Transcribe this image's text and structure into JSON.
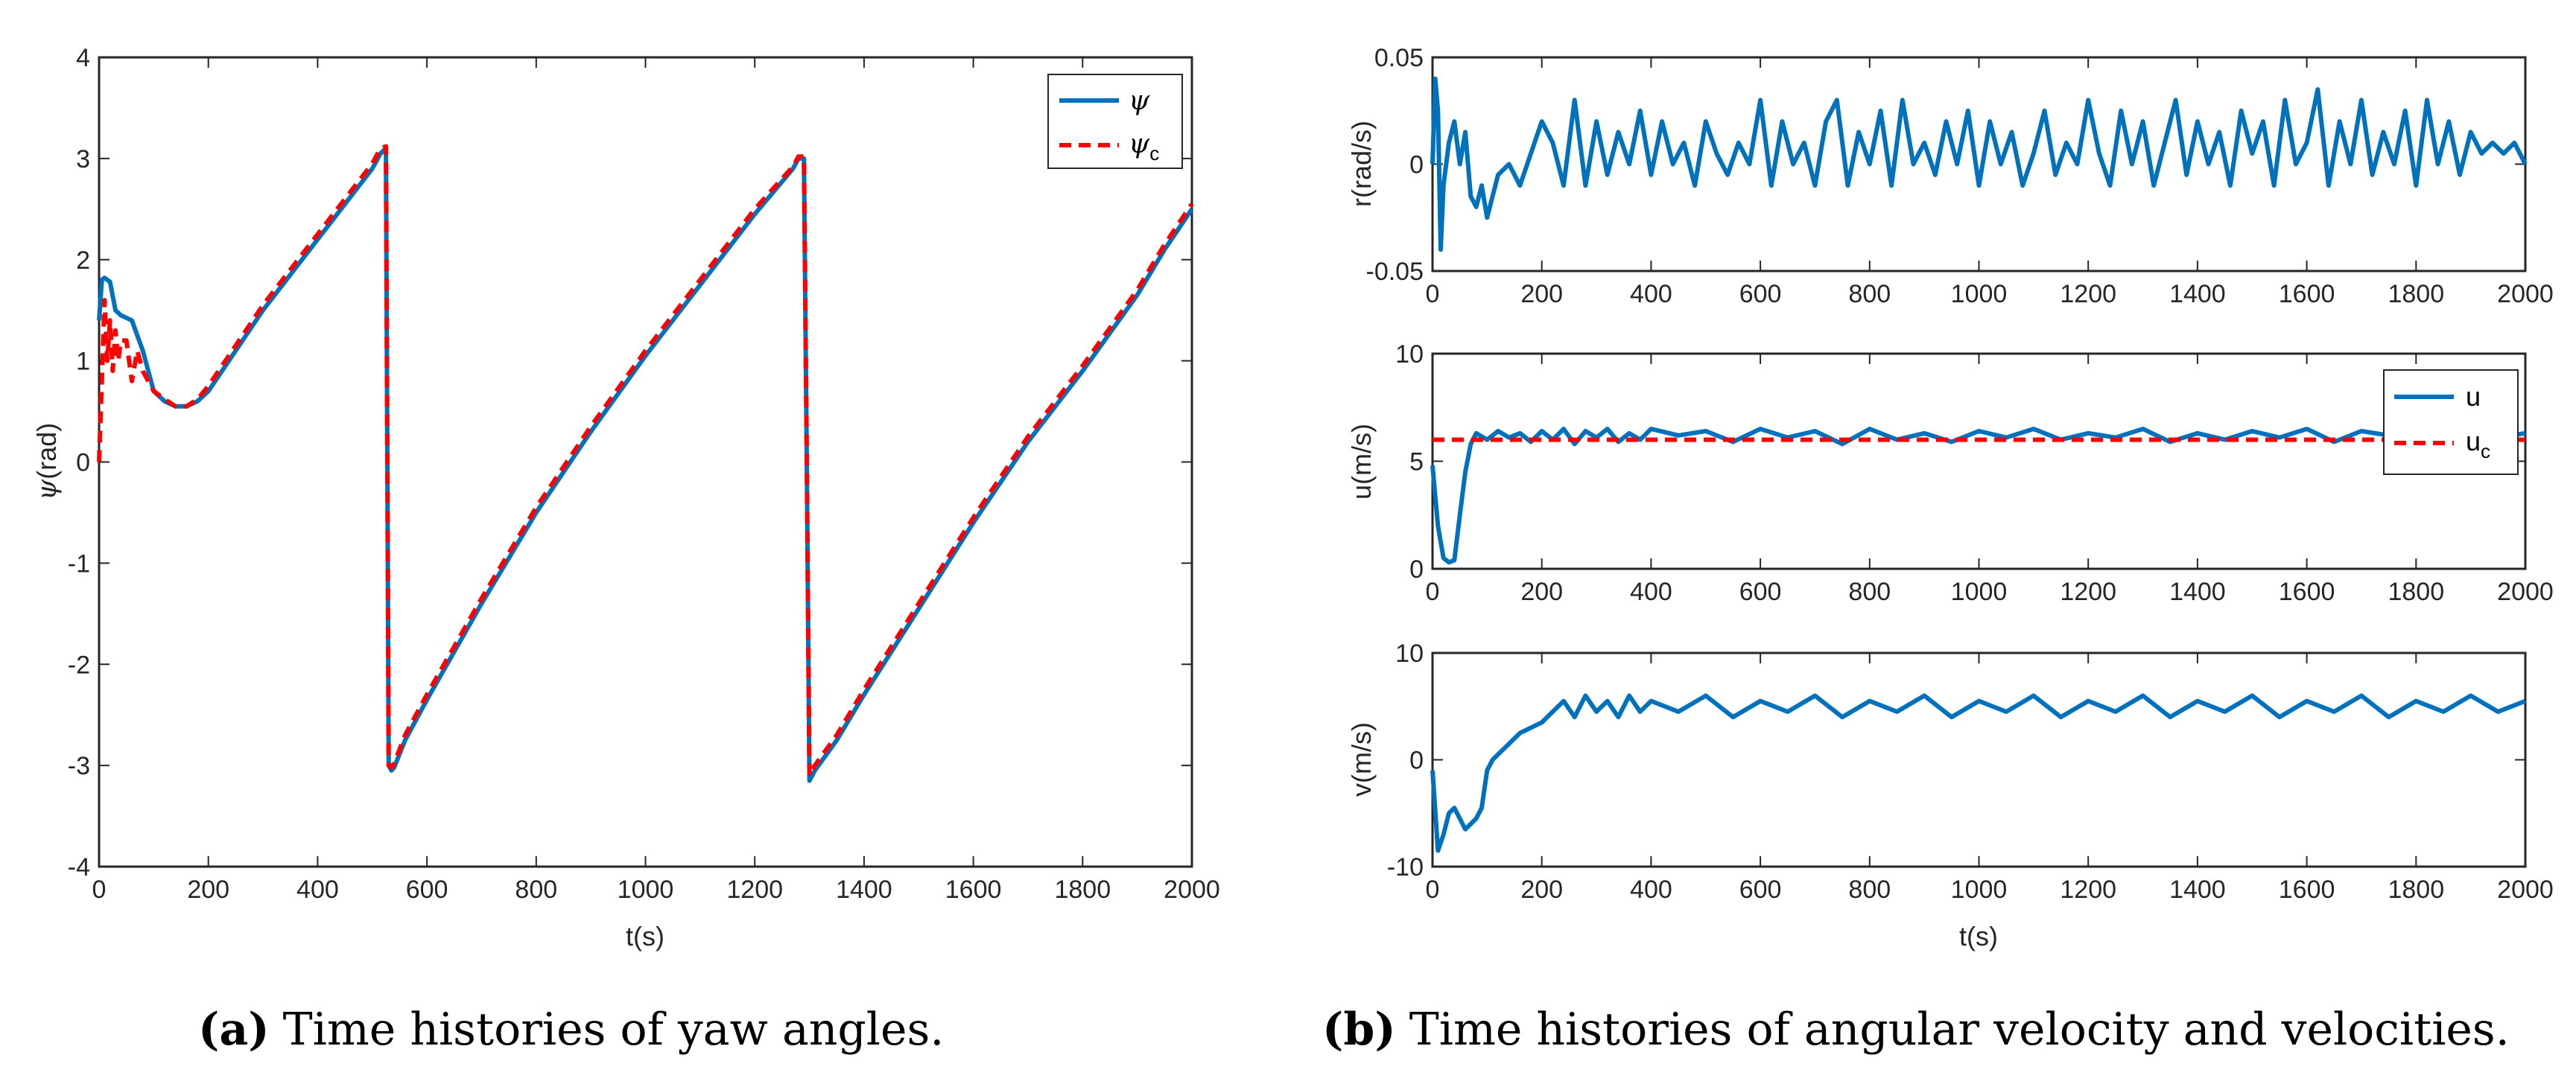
{
  "colors": {
    "actual": "#0072BD",
    "command": "#FF0000",
    "axis": "#262626"
  },
  "captions": {
    "a": {
      "letter": "(a)",
      "text": "Time histories of yaw angles."
    },
    "b": {
      "letter": "(b)",
      "text": "Time histories of angular velocity and velocities."
    }
  },
  "chart_data": [
    {
      "id": "yaw",
      "type": "line",
      "xlabel": "t(s)",
      "ylabel_symbol": "ψ",
      "ylabel_unit": "(rad)",
      "xlim": [
        0,
        2000
      ],
      "ylim": [
        -4,
        4
      ],
      "xticks": [
        0,
        200,
        400,
        600,
        800,
        1000,
        1200,
        1400,
        1600,
        1800,
        2000
      ],
      "yticks": [
        -4,
        -3,
        -2,
        -1,
        0,
        1,
        2,
        3,
        4
      ],
      "legend": {
        "position": "top-right",
        "entries": [
          {
            "symbol": "ψ",
            "sub": ""
          },
          {
            "symbol": "ψ",
            "sub": "c"
          }
        ]
      },
      "series": [
        {
          "name": "ψ",
          "style": "solid",
          "x": [
            0,
            5,
            10,
            20,
            30,
            40,
            60,
            80,
            100,
            120,
            140,
            160,
            180,
            200,
            250,
            300,
            350,
            400,
            450,
            500,
            515,
            525,
            530,
            535,
            540,
            560,
            600,
            700,
            800,
            900,
            1000,
            1100,
            1200,
            1270,
            1280,
            1290,
            1295,
            1300,
            1310,
            1350,
            1400,
            1500,
            1600,
            1700,
            1800,
            1900,
            1950,
            2000
          ],
          "y": [
            1.4,
            1.8,
            1.82,
            1.78,
            1.5,
            1.45,
            1.4,
            1.1,
            0.7,
            0.6,
            0.55,
            0.55,
            0.6,
            0.7,
            1.1,
            1.5,
            1.85,
            2.2,
            2.55,
            2.9,
            3.05,
            3.1,
            -3.0,
            -3.05,
            -3.02,
            -2.75,
            -2.35,
            -1.4,
            -0.5,
            0.3,
            1.05,
            1.75,
            2.45,
            2.9,
            3.0,
            3.0,
            0.1,
            -3.15,
            -3.05,
            -2.75,
            -2.3,
            -1.45,
            -0.6,
            0.2,
            0.9,
            1.65,
            2.1,
            2.5
          ]
        },
        {
          "name": "ψc",
          "style": "dashed",
          "x": [
            0,
            5,
            10,
            15,
            20,
            25,
            30,
            35,
            40,
            50,
            60,
            70,
            80,
            90,
            100,
            120,
            140,
            160,
            180,
            200,
            250,
            300,
            350,
            400,
            450,
            500,
            515,
            525,
            530,
            535,
            540,
            560,
            600,
            700,
            800,
            900,
            1000,
            1100,
            1200,
            1270,
            1280,
            1290,
            1295,
            1300,
            1310,
            1350,
            1400,
            1500,
            1600,
            1700,
            1800,
            1900,
            1950,
            2000
          ],
          "y": [
            0.0,
            0.8,
            1.6,
            1.0,
            1.4,
            0.9,
            1.3,
            1.0,
            1.2,
            1.2,
            0.8,
            1.1,
            0.9,
            0.8,
            0.7,
            0.62,
            0.55,
            0.55,
            0.62,
            0.75,
            1.15,
            1.55,
            1.9,
            2.25,
            2.6,
            2.95,
            3.1,
            3.12,
            -3.0,
            -3.02,
            -2.98,
            -2.7,
            -2.3,
            -1.35,
            -0.45,
            0.35,
            1.1,
            1.8,
            2.5,
            2.92,
            3.02,
            3.02,
            0.1,
            -3.1,
            -3.0,
            -2.7,
            -2.25,
            -1.4,
            -0.55,
            0.25,
            0.95,
            1.7,
            2.15,
            2.55
          ]
        }
      ]
    },
    {
      "id": "r",
      "type": "line",
      "xlabel": "",
      "ylabel": "r(rad/s)",
      "xlim": [
        0,
        2000
      ],
      "ylim": [
        -0.05,
        0.05
      ],
      "xticks": [
        0,
        200,
        400,
        600,
        800,
        1000,
        1200,
        1400,
        1600,
        1800,
        2000
      ],
      "yticks": [
        -0.05,
        0,
        0.05
      ],
      "ytick_labels": [
        "-0.05",
        "0",
        "0.05"
      ],
      "series": [
        {
          "name": "r",
          "style": "solid",
          "x": [
            0,
            5,
            10,
            15,
            20,
            30,
            40,
            50,
            60,
            70,
            80,
            90,
            100,
            120,
            140,
            160,
            180,
            200,
            220,
            240,
            260,
            280,
            300,
            320,
            340,
            360,
            380,
            400,
            420,
            440,
            460,
            480,
            500,
            520,
            540,
            560,
            580,
            600,
            620,
            640,
            660,
            680,
            700,
            720,
            740,
            760,
            780,
            800,
            820,
            840,
            860,
            880,
            900,
            920,
            940,
            960,
            980,
            1000,
            1020,
            1040,
            1060,
            1080,
            1100,
            1120,
            1140,
            1160,
            1180,
            1200,
            1220,
            1240,
            1260,
            1280,
            1300,
            1320,
            1340,
            1360,
            1380,
            1400,
            1420,
            1440,
            1460,
            1480,
            1500,
            1520,
            1540,
            1560,
            1580,
            1600,
            1620,
            1640,
            1660,
            1680,
            1700,
            1720,
            1740,
            1760,
            1780,
            1800,
            1820,
            1840,
            1860,
            1880,
            1900,
            1920,
            1940,
            1960,
            1980,
            2000
          ],
          "y": [
            0.0,
            0.04,
            0.025,
            -0.04,
            -0.01,
            0.01,
            0.02,
            0.0,
            0.015,
            -0.015,
            -0.02,
            -0.01,
            -0.025,
            -0.005,
            0.0,
            -0.01,
            0.005,
            0.02,
            0.01,
            -0.01,
            0.03,
            -0.01,
            0.02,
            -0.005,
            0.015,
            0.0,
            0.025,
            -0.005,
            0.02,
            0.0,
            0.01,
            -0.01,
            0.02,
            0.005,
            -0.005,
            0.01,
            0.0,
            0.03,
            -0.01,
            0.02,
            0.0,
            0.01,
            -0.01,
            0.02,
            0.03,
            -0.01,
            0.015,
            0.0,
            0.025,
            -0.01,
            0.03,
            0.0,
            0.01,
            -0.005,
            0.02,
            0.0,
            0.025,
            -0.01,
            0.02,
            0.0,
            0.015,
            -0.01,
            0.005,
            0.025,
            -0.005,
            0.01,
            0.0,
            0.03,
            0.005,
            -0.01,
            0.025,
            0.0,
            0.02,
            -0.01,
            0.01,
            0.03,
            -0.005,
            0.02,
            0.0,
            0.015,
            -0.01,
            0.025,
            0.005,
            0.02,
            -0.01,
            0.03,
            0.0,
            0.01,
            0.035,
            -0.01,
            0.02,
            0.0,
            0.03,
            -0.005,
            0.015,
            0.0,
            0.025,
            -0.01,
            0.03,
            0.0,
            0.02,
            -0.005,
            0.015,
            0.005,
            0.01,
            0.005,
            0.01,
            0.0
          ]
        }
      ]
    },
    {
      "id": "u",
      "type": "line",
      "xlabel": "",
      "ylabel": "u(m/s)",
      "xlim": [
        0,
        2000
      ],
      "ylim": [
        0,
        10
      ],
      "xticks": [
        0,
        200,
        400,
        600,
        800,
        1000,
        1200,
        1400,
        1600,
        1800,
        2000
      ],
      "yticks": [
        0,
        5,
        10
      ],
      "legend": {
        "position": "top-right",
        "entries": [
          {
            "symbol": "u",
            "sub": ""
          },
          {
            "symbol": "u",
            "sub": "c"
          }
        ]
      },
      "series": [
        {
          "name": "u",
          "style": "solid",
          "x": [
            0,
            10,
            20,
            30,
            40,
            50,
            60,
            70,
            80,
            100,
            120,
            140,
            160,
            180,
            200,
            220,
            240,
            260,
            280,
            300,
            320,
            340,
            360,
            380,
            400,
            450,
            500,
            550,
            600,
            650,
            700,
            750,
            800,
            850,
            900,
            950,
            1000,
            1050,
            1100,
            1150,
            1200,
            1250,
            1300,
            1350,
            1400,
            1450,
            1500,
            1550,
            1600,
            1650,
            1700,
            1750,
            1800,
            1850,
            1900,
            1950,
            2000
          ],
          "y": [
            4.8,
            2.0,
            0.5,
            0.3,
            0.4,
            2.5,
            4.5,
            5.8,
            6.3,
            6.0,
            6.4,
            6.1,
            6.3,
            5.9,
            6.4,
            6.0,
            6.5,
            5.8,
            6.4,
            6.1,
            6.5,
            5.9,
            6.3,
            6.0,
            6.5,
            6.2,
            6.4,
            5.9,
            6.5,
            6.1,
            6.4,
            5.8,
            6.5,
            6.0,
            6.3,
            5.9,
            6.4,
            6.1,
            6.5,
            6.0,
            6.3,
            6.1,
            6.5,
            5.9,
            6.3,
            6.0,
            6.4,
            6.1,
            6.5,
            5.9,
            6.4,
            6.2,
            6.5,
            6.0,
            6.4,
            6.1,
            6.3
          ]
        },
        {
          "name": "uc",
          "style": "dashed",
          "x": [
            0,
            2000
          ],
          "y": [
            6.0,
            6.0
          ]
        }
      ]
    },
    {
      "id": "v",
      "type": "line",
      "xlabel": "t(s)",
      "ylabel": "v(m/s)",
      "xlim": [
        0,
        2000
      ],
      "ylim": [
        -10,
        10
      ],
      "xticks": [
        0,
        200,
        400,
        600,
        800,
        1000,
        1200,
        1400,
        1600,
        1800,
        2000
      ],
      "yticks": [
        -10,
        0,
        10
      ],
      "series": [
        {
          "name": "v",
          "style": "solid",
          "x": [
            0,
            10,
            20,
            30,
            40,
            60,
            80,
            90,
            100,
            110,
            120,
            140,
            160,
            180,
            200,
            220,
            240,
            260,
            280,
            300,
            320,
            340,
            360,
            380,
            400,
            450,
            500,
            550,
            600,
            650,
            700,
            750,
            800,
            850,
            900,
            950,
            1000,
            1050,
            1100,
            1150,
            1200,
            1250,
            1300,
            1350,
            1400,
            1450,
            1500,
            1550,
            1600,
            1650,
            1700,
            1750,
            1800,
            1850,
            1900,
            1950,
            2000
          ],
          "y": [
            -1.0,
            -8.5,
            -7.0,
            -5.0,
            -4.5,
            -6.5,
            -5.5,
            -4.5,
            -1.0,
            0.0,
            0.5,
            1.5,
            2.5,
            3.0,
            3.5,
            4.5,
            5.5,
            4.0,
            6.0,
            4.5,
            5.5,
            4.0,
            6.0,
            4.5,
            5.5,
            4.5,
            6.0,
            4.0,
            5.5,
            4.5,
            6.0,
            4.0,
            5.5,
            4.5,
            6.0,
            4.0,
            5.5,
            4.5,
            6.0,
            4.0,
            5.5,
            4.5,
            6.0,
            4.0,
            5.5,
            4.5,
            6.0,
            4.0,
            5.5,
            4.5,
            6.0,
            4.0,
            5.5,
            4.5,
            6.0,
            4.5,
            5.5
          ]
        }
      ]
    }
  ]
}
